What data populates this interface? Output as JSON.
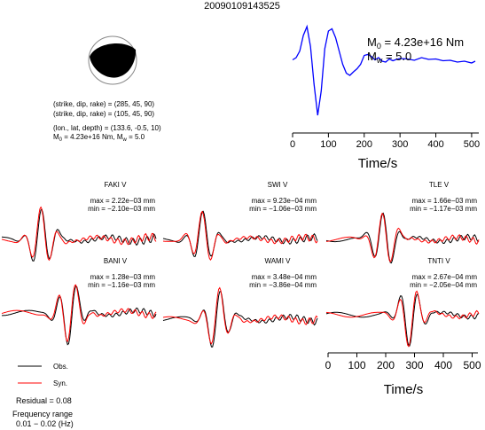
{
  "event_id": "20090109143525",
  "mechanism": {
    "planes": [
      "(strike, dip, rake) = (285, 45, 90)",
      "(strike, dip, rake) = (105, 45, 90)"
    ],
    "location": "(lon., lat, depth) = (133.6, -0.5, 10)",
    "m0_mw_prefix": "M",
    "m0_mw_sub0": "0",
    "m0_mw_mid": " = 4.23e+16 Nm, M",
    "m0_mw_subw": "w",
    "m0_mw_end": " = 5.0"
  },
  "stf": {
    "m0_prefix": "M",
    "m0_sub": "0",
    "m0_value": " = 4.23e+16 Nm",
    "mw_prefix": "M",
    "mw_sub": "w",
    "mw_value": " = 5.0"
  },
  "legend": {
    "obs": "Obs.",
    "syn": "Syn.",
    "residual": "Residual = 0.08",
    "freq_title": "Frequency range",
    "freq_value": "0.01 − 0.02 (Hz)",
    "obs_color": "#000000",
    "syn_color": "#ff0000"
  },
  "stations": [
    {
      "name": "FAKI V",
      "max": "max = 2.22e−03 mm",
      "min": "min = −2.10e−03 mm"
    },
    {
      "name": "SWI V",
      "max": "max = 9.23e−04 mm",
      "min": "min = −1.06e−03 mm"
    },
    {
      "name": "TLE V",
      "max": "max = 1.66e−03 mm",
      "min": "min = −1.17e−03 mm"
    },
    {
      "name": "BANI V",
      "max": "max = 1.28e−03 mm",
      "min": "min = −1.16e−03 mm"
    },
    {
      "name": "WAMI V",
      "max": "max = 3.48e−04 mm",
      "min": "min = −3.86e−04 mm"
    },
    {
      "name": "TNTI V",
      "max": "max = 2.67e−04 mm",
      "min": "min = −2.05e−04 mm"
    }
  ],
  "chart_data": [
    {
      "type": "line",
      "title": "",
      "xlabel": "Time/s",
      "ylabel": "",
      "xlim": [
        0,
        520
      ],
      "xticks": [
        "0",
        "100",
        "200",
        "300",
        "400",
        "500"
      ],
      "color": "#0000ff",
      "series": [
        {
          "x": [
            0,
            10,
            20,
            30,
            40,
            50,
            60,
            70,
            80,
            90,
            100,
            110,
            120,
            130,
            140,
            150,
            160,
            170,
            180,
            190,
            200,
            210,
            220,
            230,
            240,
            250,
            260,
            270,
            280,
            290,
            300,
            320,
            340,
            360,
            380,
            400,
            420,
            440,
            460,
            480,
            500,
            510
          ],
          "values": [
            0.25,
            0.3,
            0.45,
            0.8,
            1.0,
            0.55,
            -0.3,
            -1.0,
            -0.45,
            0.5,
            0.9,
            0.95,
            0.75,
            0.45,
            0.15,
            -0.05,
            -0.1,
            -0.02,
            0.05,
            0.15,
            0.35,
            0.37,
            0.33,
            0.25,
            0.3,
            0.22,
            0.2,
            0.27,
            0.23,
            0.26,
            0.28,
            0.27,
            0.24,
            0.3,
            0.26,
            0.27,
            0.23,
            0.24,
            0.2,
            0.22,
            0.18,
            0.22
          ]
        }
      ]
    },
    {
      "type": "line",
      "title": "",
      "xlabel": "Time/s",
      "ylabel": "",
      "xlim": [
        0,
        520
      ],
      "xticks": [
        "0",
        "100",
        "200",
        "300",
        "400",
        "500"
      ],
      "series": [
        {
          "name": "Obs.",
          "color": "#000000"
        },
        {
          "name": "Syn.",
          "color": "#ff0000"
        }
      ]
    }
  ]
}
